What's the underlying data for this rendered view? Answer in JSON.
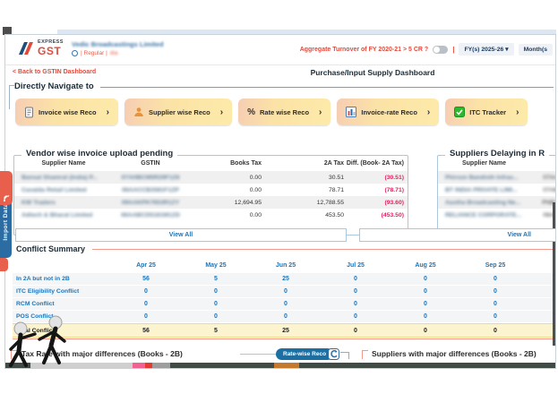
{
  "header": {
    "logo": {
      "express": "EXPRESS",
      "gst": "GST"
    },
    "company_name": "Vedic Broadcastings Limited",
    "company_type": "| Regular |",
    "company_extra": "dia",
    "aggregate_label": "Aggregate Turnover of FY 2020-21 > 5 CR ?",
    "separator": "|",
    "fy_selector": "FY(s) 2025-26 ▾",
    "month_selector": "Month(s"
  },
  "nav_bar": {
    "back_link": "< Back to GSTIN Dashboard",
    "page_title": "Purchase/Input Supply Dashboard"
  },
  "directly_navigate": {
    "title": "Directly Navigate to",
    "buttons": [
      {
        "label": "Invoice wise Reco",
        "icon": "invoice-icon"
      },
      {
        "label": "Supplier wise Reco",
        "icon": "supplier-icon"
      },
      {
        "label": "Rate wise Reco",
        "icon": "percent-icon"
      },
      {
        "label": "Invoice-rate Reco",
        "icon": "chart-icon"
      },
      {
        "label": "ITC Tracker",
        "icon": "checkbox-icon"
      }
    ]
  },
  "vendor_panel": {
    "title": "Vendor wise invoice upload pending",
    "columns": [
      "Supplier Name",
      "GSTIN",
      "Books Tax",
      "2A Tax",
      "Diff. (Book- 2A Tax)"
    ],
    "rows": [
      {
        "supplier": "Bansal Shamrat (India) P...",
        "gstin": "07AHBCM5R29F1Z6",
        "books_tax": "0.00",
        "tax_2a": "30.51",
        "diff": "(30.51)"
      },
      {
        "supplier": "Cavalda Retail Limited",
        "gstin": "06AACCB3581F1ZP",
        "books_tax": "0.00",
        "tax_2a": "78.71",
        "diff": "(78.71)"
      },
      {
        "supplier": "KW Traders",
        "gstin": "09AAKPK7653R1ZY",
        "books_tax": "12,694.95",
        "tax_2a": "12,788.55",
        "diff": "(93.60)"
      },
      {
        "supplier": "Adtech & Bharat Limited",
        "gstin": "06AABCD5181M1ZD",
        "books_tax": "0.00",
        "tax_2a": "453.50",
        "diff": "(453.50)"
      }
    ],
    "view_all": "View All"
  },
  "suppliers_panel": {
    "title": "Suppliers Delaying in R",
    "columns": [
      "Supplier Name"
    ],
    "rows": [
      {
        "supplier": "Phiroze Bandisth Infras...",
        "value": "07AA"
      },
      {
        "supplier": "BT INDIA PRIVATE LIMI...",
        "value": "07AB"
      },
      {
        "supplier": "Aastha Broadcasting Ne...",
        "value": "PNB1"
      },
      {
        "supplier": "RELIANCE CORPORATE...",
        "value": "06AA"
      }
    ],
    "view_all": "View All"
  },
  "conflict_summary": {
    "title": "Conflict Summary",
    "months": [
      "Apr 25",
      "May 25",
      "Jun 25",
      "Jul 25",
      "Aug 25",
      "Sep 25"
    ],
    "rows": [
      {
        "label": "In 2A but not in 2B",
        "values": [
          "56",
          "5",
          "25",
          "0",
          "0",
          "0"
        ],
        "total": false
      },
      {
        "label": "ITC Eligibility Conflict",
        "values": [
          "0",
          "0",
          "0",
          "0",
          "0",
          "0"
        ],
        "total": false
      },
      {
        "label": "RCM Conflict",
        "values": [
          "0",
          "0",
          "0",
          "0",
          "0",
          "0"
        ],
        "total": false
      },
      {
        "label": "POS Conflict",
        "values": [
          "0",
          "0",
          "0",
          "0",
          "0",
          "0"
        ],
        "total": false
      },
      {
        "label": "Total Conflict",
        "values": [
          "56",
          "5",
          "25",
          "0",
          "0",
          "0"
        ],
        "total": true
      }
    ]
  },
  "bottom": {
    "left_title": "Tax Rate with major differences (Books - 2B)",
    "rate_wise_pill": "Rate-wise Reco",
    "right_title": "Suppliers with major differences (Books - 2B)"
  },
  "side_tab": {
    "label": "Import Data"
  },
  "colors": {
    "accent_red": "#e24a3b",
    "link_blue": "#1b75bb",
    "negative_pink": "#e0245e",
    "panel_border_blue": "#a9c7df",
    "salmon_line": "#f2988c",
    "button_yellow": "#fdeaa9",
    "button_pink": "#f6cdb4",
    "total_row_yellow": "#fcf4cf",
    "tab_blue": "#2b6ca3",
    "tab_red": "#e8604c"
  }
}
